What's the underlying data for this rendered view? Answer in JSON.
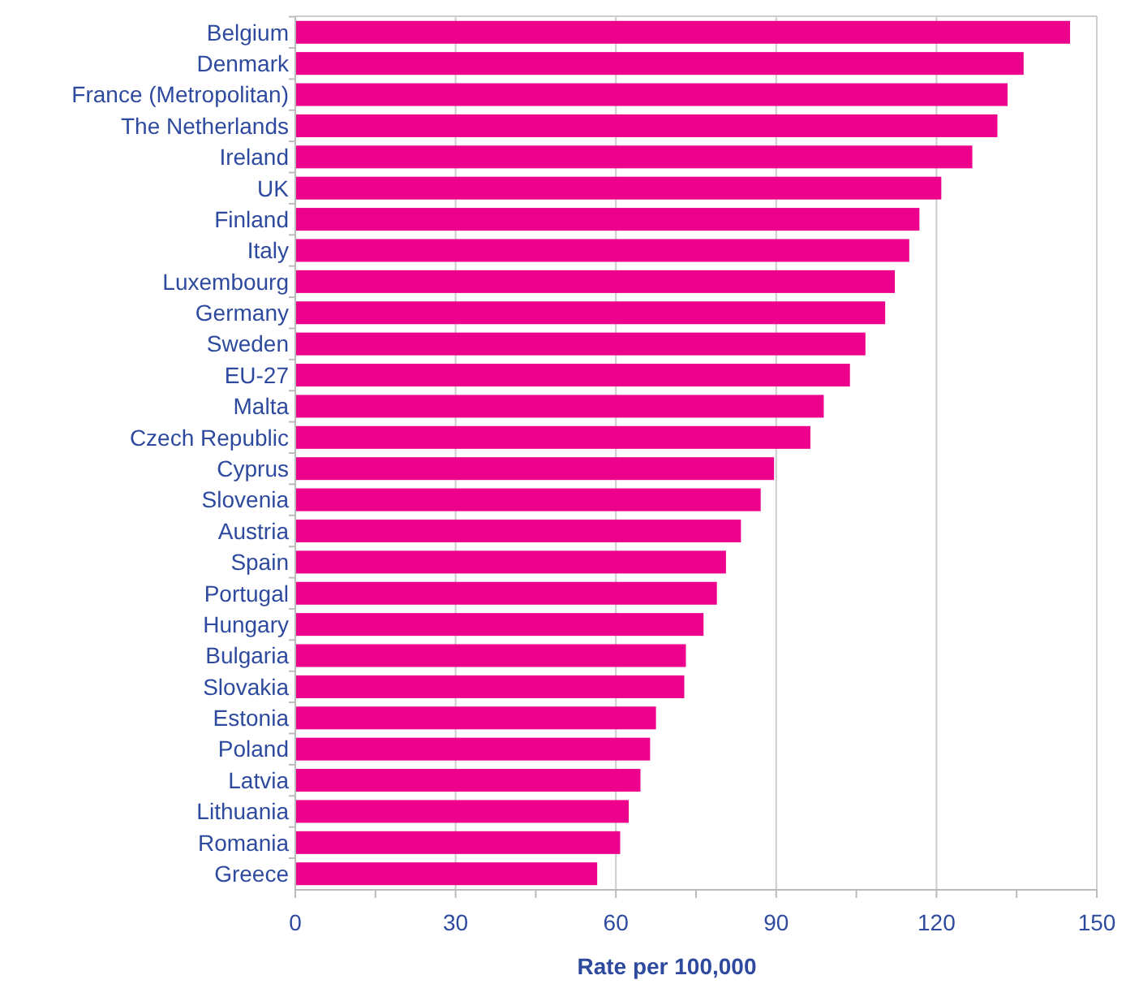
{
  "chart_data": {
    "type": "bar",
    "orientation": "horizontal",
    "xlabel": "Rate per 100,000",
    "categories": [
      "Belgium",
      "Denmark",
      "France (Metropolitan)",
      "The Netherlands",
      "Ireland",
      "UK",
      "Finland",
      "Italy",
      "Luxembourg",
      "Germany",
      "Sweden",
      "EU-27",
      "Malta",
      "Czech Republic",
      "Cyprus",
      "Slovenia",
      "Austria",
      "Spain",
      "Portugal",
      "Hungary",
      "Bulgaria",
      "Slovakia",
      "Estonia",
      "Poland",
      "Latvia",
      "Lithuania",
      "Romania",
      "Greece"
    ],
    "values": [
      145,
      136.3,
      133.3,
      131.4,
      126.7,
      120.9,
      116.8,
      114.9,
      112.2,
      110.4,
      106.7,
      103.8,
      98.9,
      96.4,
      89.6,
      87.1,
      83.4,
      80.6,
      78.9,
      76.4,
      73.1,
      72.8,
      67.5,
      66.4,
      64.6,
      62.4,
      60.8,
      56.5
    ],
    "color": "#ec008c",
    "xlim": [
      0,
      150
    ],
    "xticks": [
      0,
      {
        "value": 15,
        "label": null
      },
      30,
      {
        "value": 45,
        "label": null
      },
      60,
      {
        "value": 75,
        "label": null
      },
      90,
      {
        "value": 105,
        "label": null
      },
      120,
      {
        "value": 135,
        "label": null
      },
      150
    ],
    "grid": "x"
  }
}
